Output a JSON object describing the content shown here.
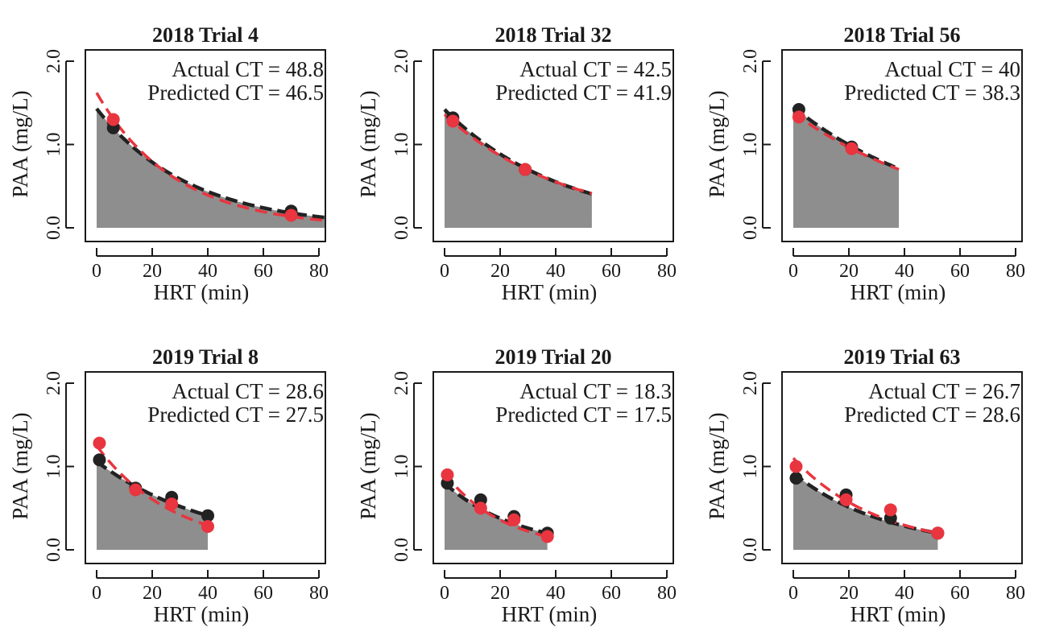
{
  "colors": {
    "actual": "#222222",
    "predicted": "#e8353f",
    "area": "#8e8e8e",
    "axis": "#1a1a1a"
  },
  "chart_data": [
    {
      "type": "scatter",
      "title": "2018 Trial 4",
      "xlabel": "HRT (min)",
      "ylabel": "PAA (mg/L)",
      "xlim": [
        0,
        80
      ],
      "ylim": [
        0,
        2
      ],
      "xticks": [
        "0",
        "20",
        "40",
        "60",
        "80"
      ],
      "yticks": [
        "0.0",
        "1.0",
        "2.0"
      ],
      "annotations": [
        "Actual CT = 48.8",
        "Predicted CT = 46.5"
      ],
      "area_extent": [
        0,
        82
      ],
      "actual_points": {
        "x": [
          6,
          70
        ],
        "y": [
          1.2,
          0.2
        ]
      },
      "predicted_points": {
        "x": [
          6,
          70
        ],
        "y": [
          1.3,
          0.15
        ]
      },
      "actual_curve": {
        "c0": 1.43,
        "k": 0.0298,
        "x": [
          0,
          82
        ]
      },
      "predicted_curve": {
        "c0": 1.62,
        "k": 0.0355,
        "x": [
          0,
          82
        ]
      }
    },
    {
      "type": "scatter",
      "title": "2018 Trial 32",
      "xlabel": "HRT (min)",
      "ylabel": "PAA (mg/L)",
      "xlim": [
        0,
        80
      ],
      "ylim": [
        0,
        2
      ],
      "xticks": [
        "0",
        "20",
        "40",
        "60",
        "80"
      ],
      "yticks": [
        "0.0",
        "1.0",
        "2.0"
      ],
      "annotations": [
        "Actual CT = 42.5",
        "Predicted CT = 41.9"
      ],
      "area_extent": [
        0,
        53
      ],
      "actual_points": {
        "x": [
          3,
          29
        ],
        "y": [
          1.32,
          0.7
        ]
      },
      "predicted_points": {
        "x": [
          3,
          29
        ],
        "y": [
          1.28,
          0.7
        ]
      },
      "actual_curve": {
        "c0": 1.42,
        "k": 0.0236,
        "x": [
          0,
          53
        ]
      },
      "predicted_curve": {
        "c0": 1.36,
        "k": 0.0226,
        "x": [
          0,
          53
        ]
      }
    },
    {
      "type": "scatter",
      "title": "2018 Trial 56",
      "xlabel": "HRT (min)",
      "ylabel": "PAA (mg/L)",
      "xlim": [
        0,
        80
      ],
      "ylim": [
        0,
        2
      ],
      "xticks": [
        "0",
        "20",
        "40",
        "60",
        "80"
      ],
      "yticks": [
        "0.0",
        "1.0",
        "2.0"
      ],
      "annotations": [
        "Actual CT = 40",
        "Predicted CT = 38.3"
      ],
      "area_extent": [
        0,
        38
      ],
      "actual_points": {
        "x": [
          2,
          21
        ],
        "y": [
          1.42,
          0.97
        ]
      },
      "predicted_points": {
        "x": [
          2,
          21
        ],
        "y": [
          1.33,
          0.95
        ]
      },
      "actual_curve": {
        "c0": 1.45,
        "k": 0.0188,
        "x": [
          0,
          38
        ]
      },
      "predicted_curve": {
        "c0": 1.38,
        "k": 0.0178,
        "x": [
          0,
          38
        ]
      }
    },
    {
      "type": "scatter",
      "title": "2019 Trial 8",
      "xlabel": "HRT (min)",
      "ylabel": "PAA (mg/L)",
      "xlim": [
        0,
        80
      ],
      "ylim": [
        0,
        2
      ],
      "xticks": [
        "0",
        "20",
        "40",
        "60",
        "80"
      ],
      "yticks": [
        "0.0",
        "1.0",
        "2.0"
      ],
      "annotations": [
        "Actual CT = 28.6",
        "Predicted CT = 27.5"
      ],
      "area_extent": [
        0,
        40
      ],
      "actual_points": {
        "x": [
          1,
          14,
          27,
          40
        ],
        "y": [
          1.08,
          0.74,
          0.63,
          0.41
        ]
      },
      "predicted_points": {
        "x": [
          1,
          14,
          27,
          40
        ],
        "y": [
          1.28,
          0.72,
          0.55,
          0.28
        ]
      },
      "actual_curve": {
        "c0": 1.06,
        "k": 0.0237,
        "x": [
          0,
          40
        ]
      },
      "predicted_curve": {
        "c0": 1.25,
        "k": 0.0362,
        "x": [
          0,
          40
        ]
      }
    },
    {
      "type": "scatter",
      "title": "2019 Trial 20",
      "xlabel": "HRT (min)",
      "ylabel": "PAA (mg/L)",
      "xlim": [
        0,
        80
      ],
      "ylim": [
        0,
        2
      ],
      "xticks": [
        "0",
        "20",
        "40",
        "60",
        "80"
      ],
      "yticks": [
        "0.0",
        "1.0",
        "2.0"
      ],
      "annotations": [
        "Actual CT = 18.3",
        "Predicted CT = 17.5"
      ],
      "area_extent": [
        0,
        37
      ],
      "actual_points": {
        "x": [
          1,
          13,
          25,
          37
        ],
        "y": [
          0.8,
          0.6,
          0.4,
          0.2
        ]
      },
      "predicted_points": {
        "x": [
          1,
          13,
          25,
          37
        ],
        "y": [
          0.9,
          0.5,
          0.36,
          0.16
        ]
      },
      "actual_curve": {
        "c0": 0.8,
        "k": 0.0375,
        "x": [
          0,
          37
        ]
      },
      "predicted_curve": {
        "c0": 0.92,
        "k": 0.0473,
        "x": [
          0,
          37
        ]
      }
    },
    {
      "type": "scatter",
      "title": "2019 Trial 63",
      "xlabel": "HRT (min)",
      "ylabel": "PAA (mg/L)",
      "xlim": [
        0,
        80
      ],
      "ylim": [
        0,
        2
      ],
      "xticks": [
        "0",
        "20",
        "40",
        "60",
        "80"
      ],
      "yticks": [
        "0.0",
        "1.0",
        "2.0"
      ],
      "annotations": [
        "Actual CT = 26.7",
        "Predicted CT = 28.6"
      ],
      "area_extent": [
        0,
        52
      ],
      "actual_points": {
        "x": [
          1,
          19,
          35,
          52
        ],
        "y": [
          0.86,
          0.66,
          0.38,
          0.2
        ]
      },
      "predicted_points": {
        "x": [
          1,
          19,
          35,
          52
        ],
        "y": [
          1.0,
          0.6,
          0.48,
          0.2
        ]
      },
      "actual_curve": {
        "c0": 0.92,
        "k": 0.0293,
        "x": [
          0,
          52
        ]
      },
      "predicted_curve": {
        "c0": 1.1,
        "k": 0.0328,
        "x": [
          0,
          52
        ]
      }
    }
  ]
}
